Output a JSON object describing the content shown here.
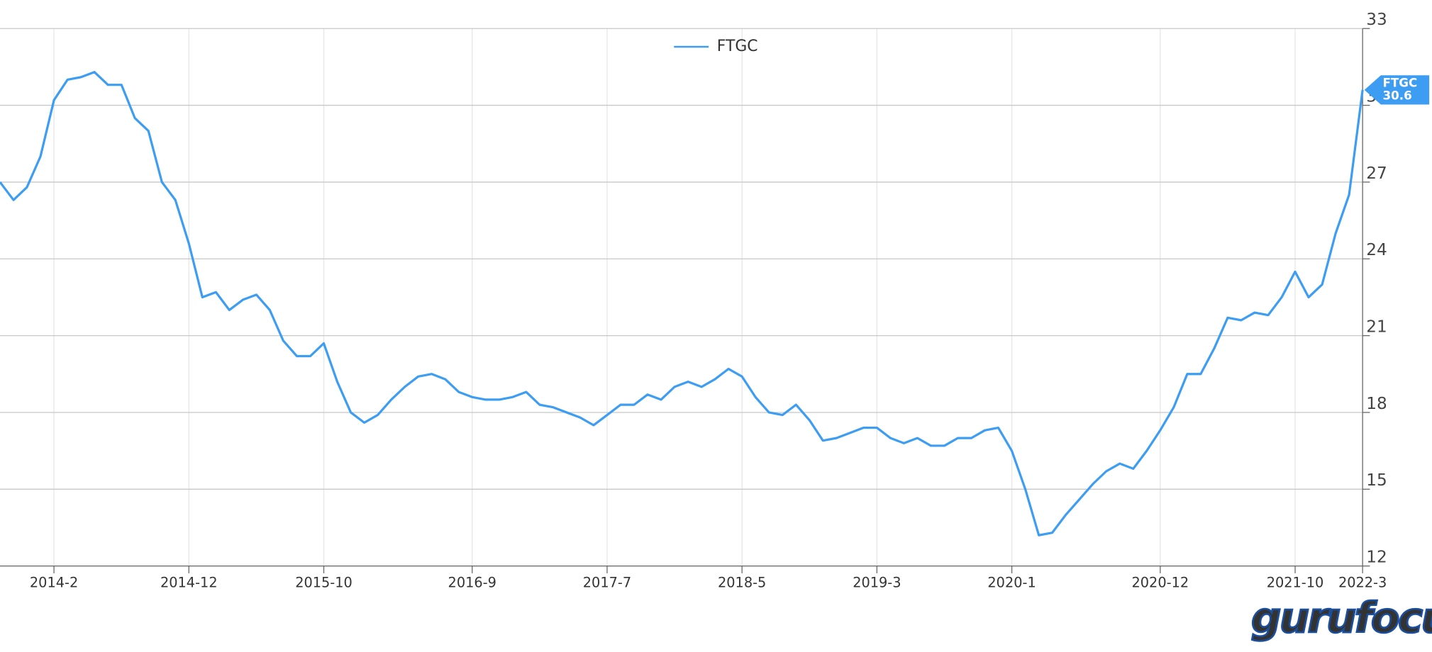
{
  "chart_data": {
    "type": "line",
    "watermark": "gurufocus",
    "x": [
      "2013-10",
      "2013-11",
      "2013-12",
      "2014-1",
      "2014-2",
      "2014-3",
      "2014-4",
      "2014-5",
      "2014-6",
      "2014-7",
      "2014-8",
      "2014-9",
      "2014-10",
      "2014-11",
      "2014-12",
      "2015-1",
      "2015-2",
      "2015-3",
      "2015-4",
      "2015-5",
      "2015-6",
      "2015-7",
      "2015-8",
      "2015-9",
      "2015-10",
      "2015-11",
      "2015-12",
      "2016-1",
      "2016-2",
      "2016-3",
      "2016-4",
      "2016-5",
      "2016-6",
      "2016-7",
      "2016-8",
      "2016-9",
      "2016-10",
      "2016-11",
      "2016-12",
      "2017-1",
      "2017-2",
      "2017-3",
      "2017-4",
      "2017-5",
      "2017-6",
      "2017-7",
      "2017-8",
      "2017-9",
      "2017-10",
      "2017-11",
      "2017-12",
      "2018-1",
      "2018-2",
      "2018-3",
      "2018-4",
      "2018-5",
      "2018-6",
      "2018-7",
      "2018-8",
      "2018-9",
      "2018-10",
      "2018-11",
      "2018-12",
      "2019-1",
      "2019-2",
      "2019-3",
      "2019-4",
      "2019-5",
      "2019-6",
      "2019-7",
      "2019-8",
      "2019-9",
      "2019-10",
      "2019-11",
      "2019-12",
      "2020-1",
      "2020-2",
      "2020-3",
      "2020-4",
      "2020-5",
      "2020-6",
      "2020-7",
      "2020-8",
      "2020-9",
      "2020-10",
      "2020-11",
      "2020-12",
      "2021-1",
      "2021-2",
      "2021-3",
      "2021-4",
      "2021-5",
      "2021-6",
      "2021-7",
      "2021-8",
      "2021-9",
      "2021-10",
      "2021-11",
      "2021-12",
      "2022-1",
      "2022-2",
      "2022-3"
    ],
    "series": [
      {
        "name": "FTGC",
        "color": "#3d9df3",
        "values": [
          27.0,
          26.3,
          26.8,
          28.0,
          30.2,
          31.0,
          31.1,
          31.3,
          30.8,
          30.8,
          29.5,
          29.0,
          27.0,
          26.3,
          24.6,
          22.5,
          22.7,
          22.0,
          22.4,
          22.6,
          22.0,
          20.8,
          20.2,
          20.2,
          20.7,
          19.2,
          18.0,
          17.6,
          17.9,
          18.5,
          19.0,
          19.4,
          19.5,
          19.3,
          18.8,
          18.6,
          18.5,
          18.5,
          18.6,
          18.8,
          18.3,
          18.2,
          18.0,
          17.8,
          17.5,
          17.9,
          18.3,
          18.3,
          18.7,
          18.5,
          19.0,
          19.2,
          19.0,
          19.3,
          19.7,
          19.4,
          18.6,
          18.0,
          17.9,
          18.3,
          17.7,
          16.9,
          17.0,
          17.2,
          17.4,
          17.4,
          17.0,
          16.8,
          17.0,
          16.7,
          16.7,
          17.0,
          17.0,
          17.3,
          17.4,
          16.5,
          15.0,
          13.2,
          13.3,
          14.0,
          14.6,
          15.2,
          15.7,
          16.0,
          15.8,
          16.5,
          17.3,
          18.2,
          19.5,
          19.5,
          20.5,
          21.7,
          21.6,
          21.9,
          21.8,
          22.5,
          23.5,
          22.5,
          23.0,
          25.0,
          26.5,
          30.6
        ]
      }
    ],
    "xlim": [
      "2013-10",
      "2022-3"
    ],
    "xticks": [
      "2014-2",
      "2014-12",
      "2015-10",
      "2016-9",
      "2017-7",
      "2018-5",
      "2019-3",
      "2020-1",
      "2020-12",
      "2021-10",
      "2022-3"
    ],
    "ylim": [
      12,
      33
    ],
    "yticks": [
      12,
      15,
      18,
      21,
      24,
      27,
      30,
      33
    ],
    "grid": true,
    "legend": "top"
  }
}
